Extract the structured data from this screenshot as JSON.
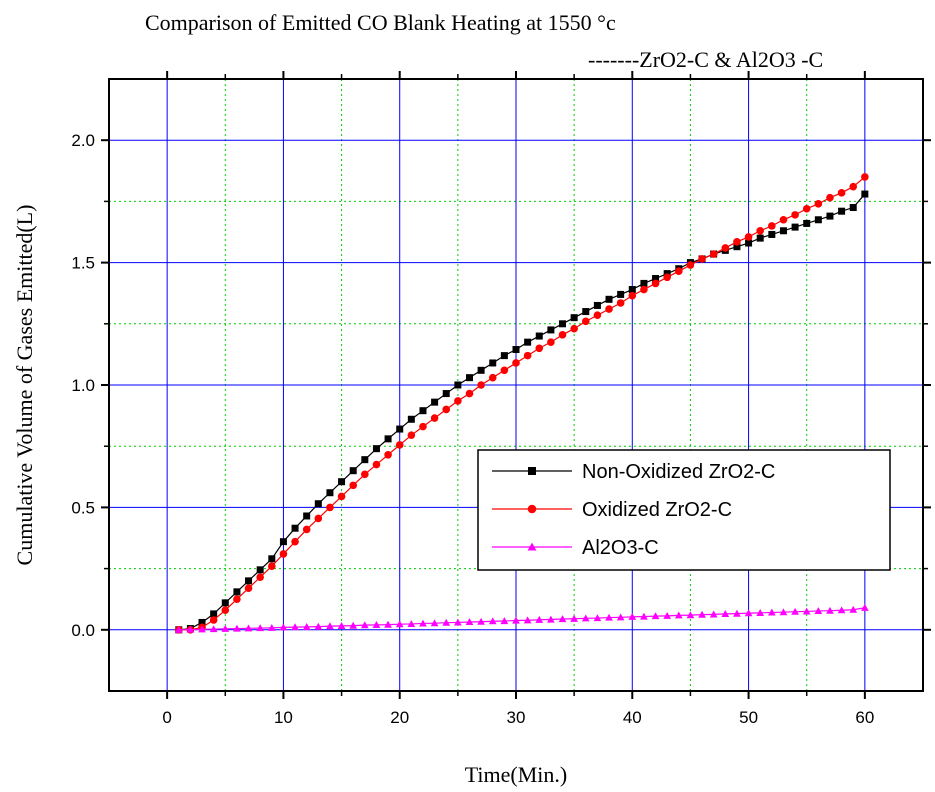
{
  "chart_data": {
    "type": "line",
    "title": "Comparison of Emitted CO Blank Heating at 1550 °c",
    "subtitle": "-------ZrO2-C & Al2O3 -C",
    "xlabel": "Time(Min.)",
    "ylabel": "Cumulative Volume of Gases Emitted(L)",
    "xlim": [
      -5,
      65
    ],
    "ylim": [
      -0.25,
      2.25
    ],
    "x_ticks": [
      0,
      10,
      20,
      30,
      40,
      50,
      60
    ],
    "y_ticks": [
      0.0,
      0.5,
      1.0,
      1.5,
      2.0
    ],
    "x_tick_labels": [
      "0",
      "10",
      "20",
      "30",
      "40",
      "50",
      "60"
    ],
    "y_tick_labels": [
      "0.0",
      "0.5",
      "1.0",
      "1.5",
      "2.0"
    ],
    "grid": true,
    "legend_position": "center-right",
    "series": [
      {
        "name": "Non-Oxidized ZrO2-C",
        "color": "#000000",
        "marker": "square",
        "x": [
          1,
          2,
          3,
          4,
          5,
          6,
          7,
          8,
          9,
          10,
          11,
          12,
          13,
          14,
          15,
          16,
          17,
          18,
          19,
          20,
          21,
          22,
          23,
          24,
          25,
          26,
          27,
          28,
          29,
          30,
          31,
          32,
          33,
          34,
          35,
          36,
          37,
          38,
          39,
          40,
          41,
          42,
          43,
          44,
          45,
          46,
          47,
          48,
          49,
          50,
          51,
          52,
          53,
          54,
          55,
          56,
          57,
          58,
          59,
          60
        ],
        "values": [
          0.0,
          0.005,
          0.03,
          0.065,
          0.11,
          0.155,
          0.2,
          0.245,
          0.29,
          0.36,
          0.415,
          0.465,
          0.515,
          0.56,
          0.605,
          0.65,
          0.695,
          0.74,
          0.78,
          0.82,
          0.86,
          0.895,
          0.93,
          0.965,
          1.0,
          1.03,
          1.06,
          1.09,
          1.12,
          1.145,
          1.175,
          1.2,
          1.225,
          1.25,
          1.275,
          1.3,
          1.325,
          1.35,
          1.37,
          1.39,
          1.415,
          1.435,
          1.455,
          1.475,
          1.5,
          1.515,
          1.535,
          1.55,
          1.565,
          1.58,
          1.6,
          1.615,
          1.63,
          1.645,
          1.66,
          1.675,
          1.69,
          1.71,
          1.725,
          1.78
        ]
      },
      {
        "name": "Oxidized ZrO2-C",
        "color": "#ff0000",
        "marker": "circle",
        "x": [
          1,
          2,
          3,
          4,
          5,
          6,
          7,
          8,
          9,
          10,
          11,
          12,
          13,
          14,
          15,
          16,
          17,
          18,
          19,
          20,
          21,
          22,
          23,
          24,
          25,
          26,
          27,
          28,
          29,
          30,
          31,
          32,
          33,
          34,
          35,
          36,
          37,
          38,
          39,
          40,
          41,
          42,
          43,
          44,
          45,
          46,
          47,
          48,
          49,
          50,
          51,
          52,
          53,
          54,
          55,
          56,
          57,
          58,
          59,
          60
        ],
        "values": [
          0.0,
          0.0,
          0.01,
          0.04,
          0.08,
          0.125,
          0.17,
          0.215,
          0.26,
          0.31,
          0.36,
          0.41,
          0.455,
          0.5,
          0.545,
          0.59,
          0.635,
          0.675,
          0.715,
          0.755,
          0.795,
          0.83,
          0.865,
          0.9,
          0.935,
          0.965,
          1.0,
          1.03,
          1.06,
          1.09,
          1.12,
          1.15,
          1.175,
          1.205,
          1.23,
          1.26,
          1.285,
          1.31,
          1.335,
          1.365,
          1.39,
          1.415,
          1.44,
          1.465,
          1.49,
          1.515,
          1.535,
          1.56,
          1.585,
          1.605,
          1.63,
          1.65,
          1.675,
          1.695,
          1.72,
          1.74,
          1.765,
          1.785,
          1.81,
          1.85
        ]
      },
      {
        "name": "Al2O3-C",
        "color": "#ff00ff",
        "marker": "triangle",
        "x": [
          1,
          2,
          3,
          4,
          5,
          6,
          7,
          8,
          9,
          10,
          11,
          12,
          13,
          14,
          15,
          16,
          17,
          18,
          19,
          20,
          21,
          22,
          23,
          24,
          25,
          26,
          27,
          28,
          29,
          30,
          31,
          32,
          33,
          34,
          35,
          36,
          37,
          38,
          39,
          40,
          41,
          42,
          43,
          44,
          45,
          46,
          47,
          48,
          49,
          50,
          51,
          52,
          53,
          54,
          55,
          56,
          57,
          58,
          59,
          60
        ],
        "values": [
          0.0,
          0.001,
          0.002,
          0.003,
          0.004,
          0.005,
          0.006,
          0.007,
          0.008,
          0.01,
          0.011,
          0.012,
          0.013,
          0.015,
          0.016,
          0.017,
          0.019,
          0.02,
          0.021,
          0.023,
          0.024,
          0.026,
          0.027,
          0.029,
          0.03,
          0.032,
          0.033,
          0.035,
          0.036,
          0.038,
          0.039,
          0.041,
          0.042,
          0.044,
          0.045,
          0.047,
          0.048,
          0.05,
          0.051,
          0.053,
          0.054,
          0.056,
          0.057,
          0.059,
          0.06,
          0.062,
          0.063,
          0.065,
          0.066,
          0.068,
          0.069,
          0.071,
          0.072,
          0.074,
          0.075,
          0.077,
          0.078,
          0.08,
          0.082,
          0.09
        ]
      }
    ]
  }
}
